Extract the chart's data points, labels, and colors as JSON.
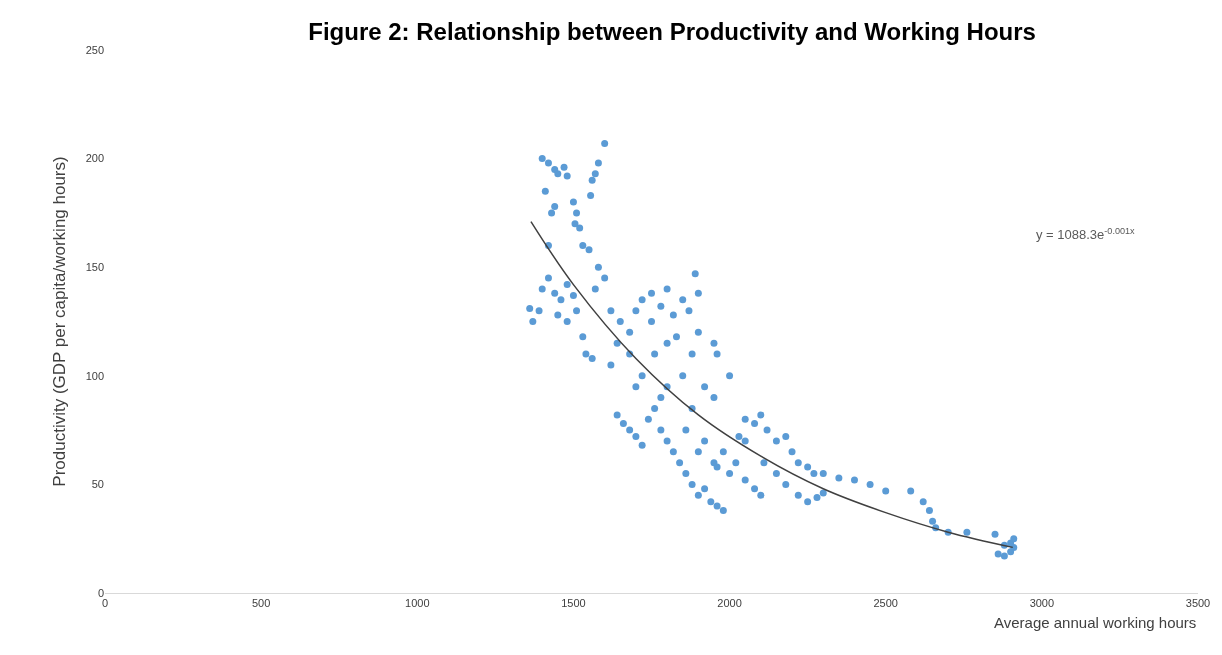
{
  "chart_data": {
    "type": "scatter",
    "title": "Figure 2: Relationship between Productivity and Working Hours",
    "xlabel": "Average annual working hours",
    "ylabel": "Productivity (GDP per capita/working hours)",
    "annotations": [
      "y = 1088.3e$^{-0.001x}$"
    ],
    "xlim": [
      0,
      3500
    ],
    "xticks": [
      0,
      500,
      1000,
      1500,
      2000,
      2500,
      3000,
      3500
    ],
    "ylim": [
      0,
      250
    ],
    "yticks": [
      0,
      50,
      100,
      150,
      200,
      250
    ],
    "marker": "circle",
    "series": [
      {
        "color": "#5b9bd5",
        "x": [
          1400,
          1420,
          1440,
          1410,
          1430,
          1450,
          1470,
          1480,
          1500,
          1510,
          1505,
          1520,
          1560,
          1570,
          1580,
          1600,
          1555,
          1420,
          1440,
          1530,
          1550,
          1360,
          1370,
          1390,
          1400,
          1420,
          1440,
          1460,
          1480,
          1500,
          1510,
          1450,
          1480,
          1530,
          1540,
          1560,
          1580,
          1600,
          1570,
          1620,
          1650,
          1680,
          1700,
          1720,
          1750,
          1780,
          1800,
          1820,
          1850,
          1870,
          1890,
          1900,
          1880,
          1850,
          1800,
          1760,
          1720,
          1700,
          1680,
          1640,
          1620,
          1750,
          1830,
          1900,
          1950,
          1960,
          2000,
          1920,
          1950,
          1640,
          1660,
          1680,
          1700,
          1720,
          1740,
          1760,
          1780,
          1800,
          1820,
          1840,
          1860,
          1880,
          1900,
          1920,
          1940,
          1960,
          1980,
          1860,
          1900,
          1920,
          1950,
          2000,
          2020,
          2050,
          2080,
          2100,
          1980,
          1960,
          1880,
          1800,
          1780,
          2050,
          2080,
          2100,
          2120,
          2150,
          2180,
          2200,
          2220,
          2250,
          2270,
          2300,
          2350,
          2400,
          2450,
          2500,
          2220,
          2250,
          2280,
          2300,
          2150,
          2180,
          2110,
          2050,
          2030,
          2580,
          2620,
          2640,
          2650,
          2660,
          2700,
          2760,
          2850,
          2880,
          2900,
          2860,
          2880,
          2900,
          2910,
          2910
        ],
        "values": [
          200,
          198,
          195,
          185,
          175,
          193,
          196,
          192,
          180,
          175,
          170,
          168,
          190,
          193,
          198,
          207,
          183,
          160,
          178,
          160,
          158,
          131,
          125,
          130,
          140,
          145,
          138,
          135,
          142,
          137,
          130,
          128,
          125,
          118,
          110,
          108,
          150,
          145,
          140,
          130,
          125,
          120,
          130,
          135,
          138,
          132,
          140,
          128,
          135,
          130,
          147,
          120,
          110,
          100,
          115,
          110,
          100,
          95,
          110,
          115,
          105,
          125,
          118,
          138,
          115,
          110,
          100,
          95,
          90,
          82,
          78,
          75,
          72,
          68,
          80,
          85,
          75,
          70,
          65,
          60,
          55,
          50,
          45,
          48,
          42,
          40,
          38,
          75,
          65,
          70,
          60,
          55,
          60,
          52,
          48,
          45,
          65,
          58,
          85,
          95,
          90,
          80,
          78,
          82,
          75,
          70,
          72,
          65,
          60,
          58,
          55,
          55,
          53,
          52,
          50,
          47,
          45,
          42,
          44,
          46,
          55,
          50,
          60,
          70,
          72,
          47,
          42,
          38,
          33,
          30,
          28,
          28,
          27,
          22,
          23,
          18,
          17,
          19,
          21,
          25
        ]
      },
      {
        "type": "line",
        "color": "#404040",
        "marker": "none",
        "line_style": "solid",
        "x": [
          1364,
          1500,
          1700,
          1900,
          2100,
          2300,
          2500,
          2700,
          2907
        ],
        "values": [
          171,
          142,
          108,
          82,
          63,
          48,
          37,
          28,
          21
        ]
      }
    ]
  }
}
